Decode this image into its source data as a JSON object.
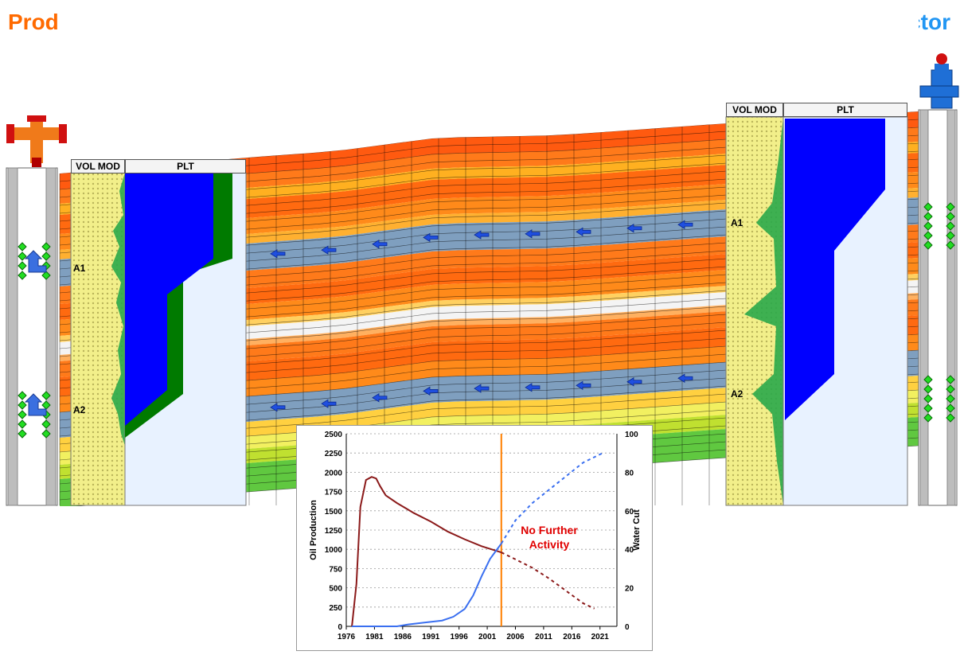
{
  "titles": {
    "producer": "Producer",
    "injector": "Injector"
  },
  "colors": {
    "producer": "#ff6a00",
    "injector": "#2196f3",
    "oil": "#8b1a1a",
    "water_cut": "#3a6ff0",
    "vline": "#ff7f00",
    "plt_fill": "#0000ff",
    "plt_edge": "#007a00"
  },
  "producer_panel": {
    "vol_mod_label": "VOL MOD",
    "plt_label": "PLT",
    "layer_a1": "A1",
    "layer_a2": "A2"
  },
  "injector_panel": {
    "vol_mod_label": "VOL MOD",
    "plt_label": "PLT",
    "layer_a1": "A1",
    "layer_a2": "A2"
  },
  "chart_data": {
    "type": "line",
    "xlabel": "",
    "ylabel_left": "Oil Production",
    "ylabel_right": "Water Cut",
    "ylim_left": [
      0,
      2500
    ],
    "ylim_right": [
      0,
      100
    ],
    "xlim": [
      1976,
      2024
    ],
    "x_ticks": [
      "1976",
      "1981",
      "1986",
      "1991",
      "1996",
      "2001",
      "2006",
      "2011",
      "2016",
      "2021"
    ],
    "y_ticks_left": [
      "0",
      "250",
      "500",
      "750",
      "1000",
      "1250",
      "1500",
      "1750",
      "2000",
      "2250",
      "2500"
    ],
    "y_ticks_right": [
      "0",
      "20",
      "40",
      "60",
      "80",
      "100"
    ],
    "annotation": "No Further Activity",
    "annotation_x": 2003.5,
    "grid": "horizontal dotted",
    "series": [
      {
        "axis": "left",
        "style": "solid",
        "x": [
          1977,
          1977.8,
          1978.5,
          1979.5,
          1980.5,
          1981.3,
          1982,
          1983,
          1985,
          1988,
          1991,
          1994,
          1997,
          2000,
          2003.5
        ],
        "y": [
          0,
          550,
          1550,
          1900,
          1940,
          1920,
          1820,
          1700,
          1600,
          1470,
          1360,
          1230,
          1130,
          1040,
          960
        ]
      },
      {
        "axis": "left",
        "style": "dashed",
        "x": [
          2003.5,
          2006,
          2009,
          2012,
          2015,
          2018,
          2020
        ],
        "y": [
          960,
          870,
          760,
          620,
          460,
          300,
          230
        ]
      },
      {
        "axis": "right",
        "style": "solid",
        "x": [
          1977,
          1985,
          1987,
          1990,
          1993,
          1995,
          1997,
          1998.5,
          2000,
          2001.5,
          2003.5
        ],
        "y": [
          0,
          0,
          1,
          2,
          3,
          5,
          9,
          16,
          26,
          35,
          43
        ]
      },
      {
        "axis": "right",
        "style": "dashed",
        "x": [
          2003.5,
          2006,
          2009,
          2012,
          2015,
          2018,
          2021.5
        ],
        "y": [
          43,
          55,
          64,
          71,
          78,
          85,
          90
        ]
      }
    ]
  }
}
